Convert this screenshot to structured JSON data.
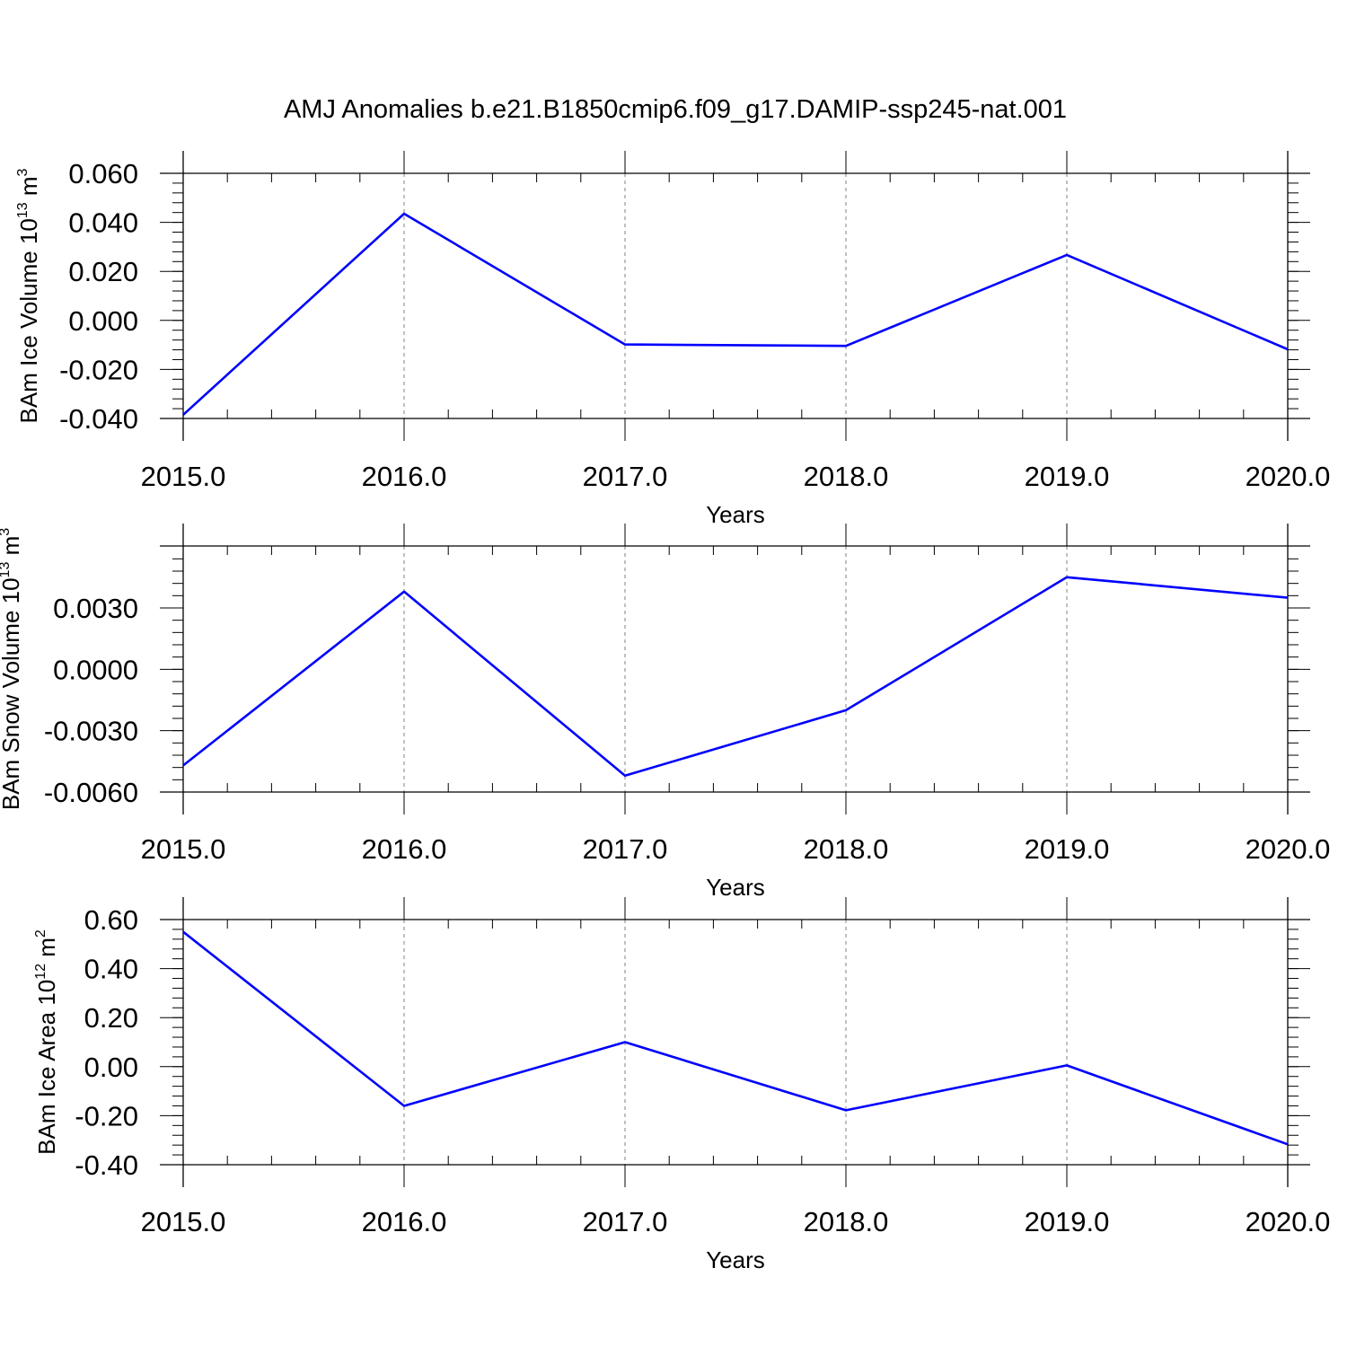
{
  "title": "AMJ Anomalies b.e21.B1850cmip6.f09_g17.DAMIP-ssp245-nat.001",
  "colors": {
    "series": "#0000ff",
    "grid": "#808080",
    "axes": "#000000"
  },
  "chart_data": [
    {
      "type": "line",
      "ylabel": {
        "text": "BAm Ice Volume 10",
        "sup": "13",
        "unit": " m",
        "unit_sup": "3"
      },
      "xlabel": "Years",
      "x": [
        2015,
        2016,
        2017,
        2018,
        2019,
        2020
      ],
      "xlim": [
        2015.0,
        2020.0
      ],
      "xticks": [
        "2015.0",
        "2016.0",
        "2017.0",
        "2018.0",
        "2019.0",
        "2020.0"
      ],
      "ylim": [
        -0.04,
        0.06
      ],
      "yticks": [
        -0.04,
        -0.02,
        0.0,
        0.02,
        0.04,
        0.06
      ],
      "ytick_labels": [
        "-0.040",
        "-0.020",
        "0.000",
        "0.020",
        "0.040",
        "0.060"
      ],
      "grid": "vertical dashed at major x ticks",
      "series": [
        {
          "values": [
            -0.0385,
            0.0435,
            -0.0098,
            -0.0104,
            0.0267,
            -0.0118
          ]
        }
      ]
    },
    {
      "type": "line",
      "ylabel": {
        "text": "BAm Snow Volume 10",
        "sup": "13",
        "unit": " m",
        "unit_sup": "3"
      },
      "xlabel": "Years",
      "x": [
        2015,
        2016,
        2017,
        2018,
        2019,
        2020
      ],
      "xlim": [
        2015.0,
        2020.0
      ],
      "xticks": [
        "2015.0",
        "2016.0",
        "2017.0",
        "2018.0",
        "2019.0",
        "2020.0"
      ],
      "ylim": [
        -0.006,
        0.006
      ],
      "yticks": [
        -0.006,
        -0.003,
        0.0,
        0.003
      ],
      "ytick_labels": [
        "-0.0060",
        "-0.0030",
        "0.0000",
        "0.0030"
      ],
      "grid": "vertical dashed at major x ticks",
      "series": [
        {
          "values": [
            -0.0047,
            0.0038,
            -0.0052,
            -0.002,
            0.0045,
            0.0035
          ]
        }
      ]
    },
    {
      "type": "line",
      "ylabel": {
        "text": "BAm Ice Area 10",
        "sup": "12",
        "unit": " m",
        "unit_sup": "2"
      },
      "xlabel": "Years",
      "x": [
        2015,
        2016,
        2017,
        2018,
        2019,
        2020
      ],
      "xlim": [
        2015.0,
        2020.0
      ],
      "xticks": [
        "2015.0",
        "2016.0",
        "2017.0",
        "2018.0",
        "2019.0",
        "2020.0"
      ],
      "ylim": [
        -0.4,
        0.6
      ],
      "yticks": [
        -0.4,
        -0.2,
        0.0,
        0.2,
        0.4,
        0.6
      ],
      "ytick_labels": [
        "-0.40",
        "-0.20",
        "0.00",
        "0.20",
        "0.40",
        "0.60"
      ],
      "grid": "vertical dashed at major x ticks",
      "series": [
        {
          "values": [
            0.55,
            -0.16,
            0.1,
            -0.178,
            0.005,
            -0.317
          ]
        }
      ]
    }
  ]
}
